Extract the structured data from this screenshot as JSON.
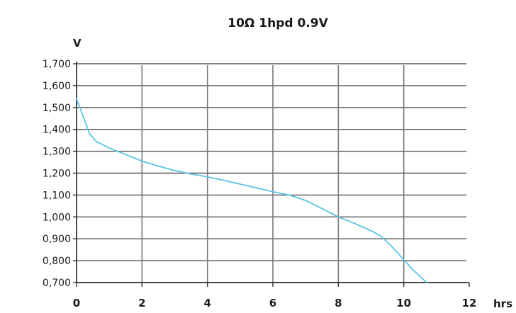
{
  "chart_data": {
    "type": "line",
    "title": "10Ω 1hpd 0.9V",
    "xlabel": "hrs",
    "ylabel": "V",
    "xlim": [
      0,
      12
    ],
    "ylim": [
      0.7,
      1.7
    ],
    "x_ticks": [
      0,
      2,
      4,
      6,
      8,
      10,
      12
    ],
    "x_tick_labels": [
      "0",
      "2",
      "4",
      "6",
      "8",
      "10",
      "12"
    ],
    "y_ticks": [
      0.7,
      0.8,
      0.9,
      1.0,
      1.1,
      1.2,
      1.3,
      1.4,
      1.5,
      1.6,
      1.7
    ],
    "y_tick_labels": [
      "0,700",
      "0,800",
      "0,900",
      "1,000",
      "1,100",
      "1,200",
      "1,300",
      "1,400",
      "1,500",
      "1,600",
      "1,700"
    ],
    "grid": true,
    "series": [
      {
        "color": "#5bc3e6",
        "x": [
          0,
          0.2,
          0.4,
          0.6,
          0.8,
          1.0,
          1.5,
          2.0,
          2.5,
          3.0,
          3.5,
          4.0,
          4.5,
          5.0,
          5.5,
          6.0,
          6.5,
          7.0,
          7.5,
          8.0,
          8.5,
          9.0,
          9.3,
          9.6,
          10.0,
          10.3,
          10.7
        ],
        "values": [
          1.54,
          1.46,
          1.38,
          1.345,
          1.33,
          1.315,
          1.285,
          1.255,
          1.232,
          1.212,
          1.196,
          1.183,
          1.167,
          1.15,
          1.133,
          1.115,
          1.1,
          1.075,
          1.038,
          1.0,
          0.97,
          0.937,
          0.912,
          0.87,
          0.805,
          0.755,
          0.7
        ]
      }
    ]
  }
}
